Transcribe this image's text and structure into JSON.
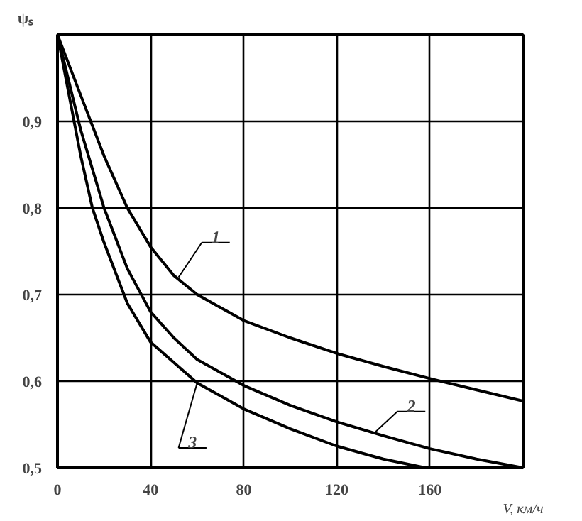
{
  "chart_data": {
    "type": "line",
    "xlabel": "V, км/ч",
    "ylabel": "ψₛ",
    "xlim": [
      0,
      200
    ],
    "ylim": [
      0.5,
      1.0
    ],
    "xticks": [
      0,
      40,
      80,
      120,
      160
    ],
    "yticks": [
      {
        "value": 0.5,
        "label": "0,5"
      },
      {
        "value": 0.6,
        "label": "0,6"
      },
      {
        "value": 0.7,
        "label": "0,7"
      },
      {
        "value": 0.8,
        "label": "0,8"
      },
      {
        "value": 0.9,
        "label": "0,9"
      },
      {
        "value": 1.0,
        "label": null
      }
    ],
    "grid": true,
    "line_style": "solid",
    "marker": "none",
    "series": [
      {
        "color": "#000000",
        "x": [
          0,
          10,
          20,
          30,
          40,
          50,
          60,
          80,
          100,
          120,
          140,
          160,
          180,
          200
        ],
        "values": [
          1.0,
          0.93,
          0.86,
          0.8,
          0.755,
          0.722,
          0.7,
          0.67,
          0.65,
          0.632,
          0.617,
          0.603,
          0.59,
          0.577
        ]
      },
      {
        "color": "#000000",
        "x": [
          0,
          10,
          20,
          30,
          40,
          50,
          60,
          80,
          100,
          120,
          140,
          160,
          180,
          200
        ],
        "values": [
          1.0,
          0.89,
          0.8,
          0.73,
          0.68,
          0.65,
          0.625,
          0.595,
          0.572,
          0.553,
          0.537,
          0.522,
          0.51,
          0.5
        ]
      },
      {
        "color": "#000000",
        "x": [
          0,
          10,
          15,
          20,
          30,
          40,
          60,
          80,
          100,
          120,
          140,
          158
        ],
        "values": [
          1.0,
          0.86,
          0.8,
          0.76,
          0.69,
          0.645,
          0.598,
          0.568,
          0.545,
          0.525,
          0.51,
          0.5
        ]
      }
    ],
    "annotations": [
      {
        "text": "1",
        "x": 52,
        "y": 0.72
      },
      {
        "text": "2",
        "x": 136,
        "y": 0.54
      },
      {
        "text": "3",
        "x": 60,
        "y": 0.598
      }
    ]
  }
}
